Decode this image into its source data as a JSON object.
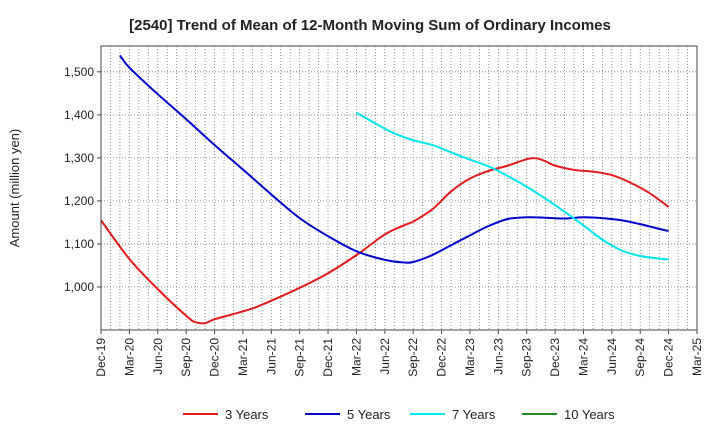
{
  "chart_data": {
    "type": "line",
    "title": "[2540]  Trend of Mean of 12-Month Moving Sum of Ordinary Incomes",
    "xlabel": "",
    "ylabel": "Amount (million yen)",
    "ylim": [
      900,
      1560
    ],
    "grid": true,
    "legend_position": "bottom",
    "y_ticks": [
      1000,
      1100,
      1200,
      1300,
      1400,
      1500
    ],
    "y_tick_labels": [
      "1,000",
      "1,100",
      "1,200",
      "1,300",
      "1,400",
      "1,500"
    ],
    "x_tick_labels": [
      "Dec-19",
      "Mar-20",
      "Jun-20",
      "Sep-20",
      "Dec-20",
      "Mar-21",
      "Jun-21",
      "Sep-21",
      "Dec-21",
      "Mar-22",
      "Jun-22",
      "Sep-22",
      "Dec-22",
      "Mar-23",
      "Jun-23",
      "Sep-23",
      "Dec-23",
      "Mar-24",
      "Jun-24",
      "Sep-24",
      "Dec-24",
      "Mar-25"
    ],
    "x_units": "months since Dec-19",
    "x_max": 63,
    "series": [
      {
        "name": "3 Years",
        "color": "#e41a1c",
        "x": [
          0,
          3,
          6,
          9,
          10,
          11,
          12,
          14,
          16,
          18,
          21,
          24,
          27,
          30,
          32,
          33,
          35,
          37,
          39,
          41,
          43,
          45,
          46,
          47,
          48,
          50,
          52,
          54,
          56,
          58,
          60
        ],
        "values": [
          1155,
          1065,
          995,
          933,
          918,
          916,
          925,
          937,
          950,
          968,
          998,
          1032,
          1074,
          1122,
          1143,
          1152,
          1180,
          1222,
          1252,
          1270,
          1282,
          1297,
          1299,
          1292,
          1282,
          1272,
          1268,
          1260,
          1242,
          1218,
          1186
        ]
      },
      {
        "name": "5 Years",
        "color": "#0000cc",
        "x": [
          2,
          3,
          6,
          9,
          12,
          15,
          18,
          21,
          24,
          27,
          30,
          32,
          33,
          35,
          37,
          39,
          41,
          43,
          45,
          47,
          49,
          51,
          53,
          55,
          57,
          59,
          60
        ],
        "values": [
          1538,
          1510,
          1448,
          1390,
          1330,
          1273,
          1215,
          1160,
          1118,
          1083,
          1063,
          1057,
          1058,
          1074,
          1097,
          1120,
          1142,
          1158,
          1162,
          1161,
          1159,
          1162,
          1160,
          1155,
          1146,
          1135,
          1130
        ]
      },
      {
        "name": "7 Years",
        "color": "#00e5ee",
        "x": [
          27,
          29,
          31,
          33,
          35,
          37,
          39,
          41,
          43,
          45,
          47,
          49,
          51,
          53,
          55,
          57,
          59,
          60
        ],
        "values": [
          1405,
          1380,
          1357,
          1341,
          1330,
          1313,
          1296,
          1280,
          1258,
          1233,
          1205,
          1175,
          1143,
          1110,
          1085,
          1072,
          1066,
          1064
        ]
      },
      {
        "name": "10 Years",
        "color": "#228b22",
        "x": [],
        "values": []
      }
    ]
  }
}
